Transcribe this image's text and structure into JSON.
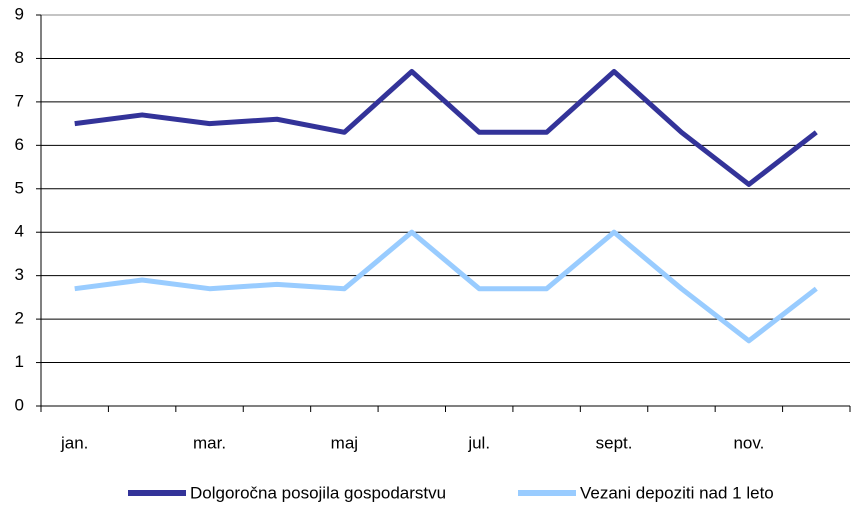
{
  "chart_data": {
    "type": "line",
    "categories": [
      "jan.",
      null,
      "mar.",
      null,
      "maj",
      null,
      "jul.",
      null,
      "sept.",
      null,
      "nov.",
      null
    ],
    "series": [
      {
        "name": "Dolgoročna posojila gospodarstvu",
        "color": "#333399",
        "values": [
          6.5,
          6.7,
          6.5,
          6.6,
          6.3,
          7.7,
          6.3,
          6.3,
          7.7,
          6.3,
          5.1,
          6.3
        ]
      },
      {
        "name": "Vezani depoziti nad 1 leto",
        "color": "#99ccff",
        "values": [
          2.7,
          2.9,
          2.7,
          2.8,
          2.7,
          4.0,
          2.7,
          2.7,
          4.0,
          2.7,
          1.5,
          2.7
        ]
      }
    ],
    "ylim": [
      0,
      9
    ],
    "yticks": [
      0,
      1,
      2,
      3,
      4,
      5,
      6,
      7,
      8,
      9
    ],
    "grid": true,
    "legend": "bottom"
  }
}
